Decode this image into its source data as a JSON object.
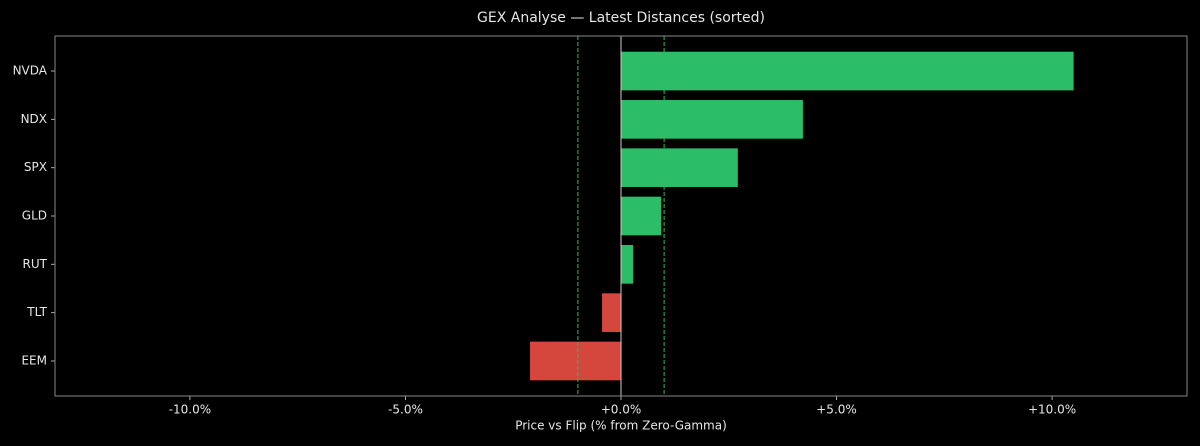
{
  "chart_data": {
    "type": "barh",
    "title": "GEX Analyse — Latest Distances (sorted)",
    "x_label": "Price vs Flip (% from Zero-Gamma)",
    "categories": [
      "NVDA",
      "NDX",
      "SPX",
      "GLD",
      "RUT",
      "TLT",
      "EEM"
    ],
    "values": [
      10.5,
      4.22,
      2.71,
      0.93,
      0.28,
      -0.44,
      -2.11
    ],
    "colors": [
      "#2bbd68",
      "#2bbd68",
      "#2bbd68",
      "#2bbd68",
      "#2bbd68",
      "#d5463c",
      "#d5463c"
    ],
    "xlim": [
      -13.13,
      13.13
    ],
    "xticks": [
      {
        "value": -10,
        "label": "-10.0%"
      },
      {
        "value": -5,
        "label": "-5.0%"
      },
      {
        "value": 0,
        "label": "+0.0%"
      },
      {
        "value": 5,
        "label": "+5.0%"
      },
      {
        "value": 10,
        "label": "+10.0%"
      }
    ],
    "reference_lines": [
      -1,
      1
    ],
    "reference_color": "#2bbd68",
    "zero_line_color": "#cccccc"
  }
}
